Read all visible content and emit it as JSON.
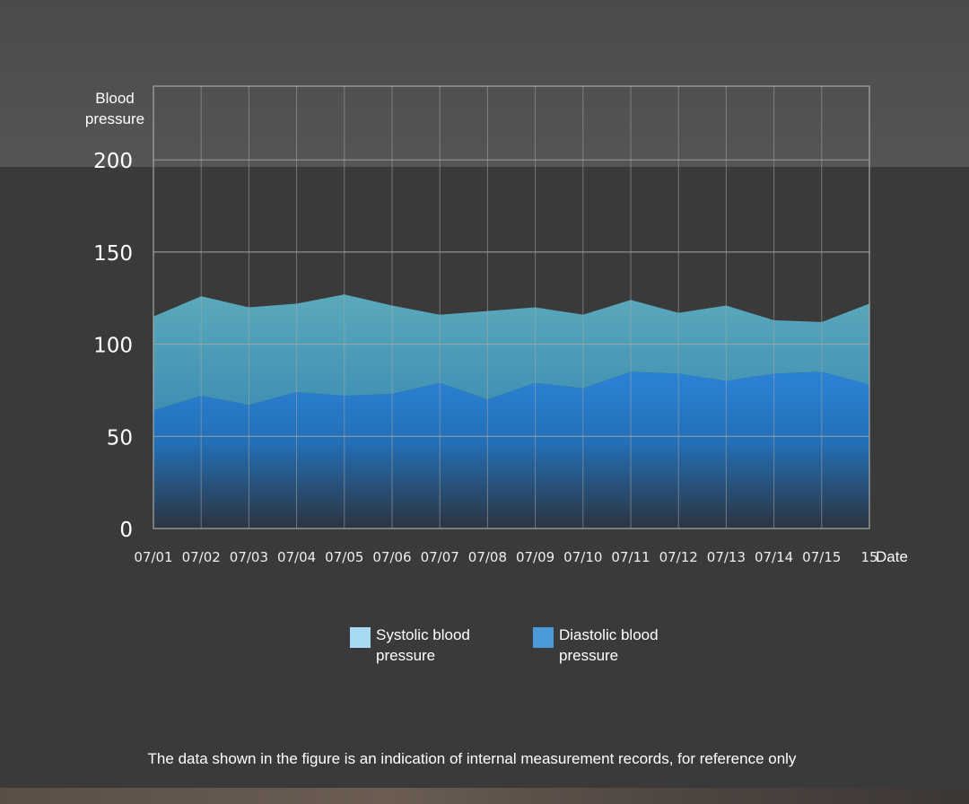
{
  "chart_data": {
    "type": "area",
    "ylabel": "Blood pressure",
    "xlabel": "Date",
    "ylim": [
      0,
      240
    ],
    "yticks": [
      0,
      50,
      100,
      150,
      200
    ],
    "categories": [
      "07/01",
      "07/02",
      "07/03",
      "07/04",
      "07/05",
      "07/06",
      "07/07",
      "07/08",
      "07/09",
      "07/10",
      "07/11",
      "07/12",
      "07/13",
      "07/14",
      "07/15",
      "15"
    ],
    "series": [
      {
        "name": "Systolic blood pressure",
        "values": [
          115,
          126,
          120,
          122,
          127,
          121,
          116,
          118,
          120,
          116,
          124,
          117,
          121,
          113,
          112,
          122
        ]
      },
      {
        "name": "Diastolic blood pressure",
        "values": [
          64,
          72,
          67,
          74,
          72,
          73,
          79,
          70,
          79,
          76,
          85,
          84,
          80,
          84,
          85,
          78
        ]
      }
    ],
    "legend_position": "bottom-center"
  },
  "colors": {
    "systolic": "#5fa3b6",
    "diastolic": "#2b7fcf",
    "systolic_swatch": "#a7dbf5",
    "diastolic_swatch": "#4a9ad8",
    "grid": "#a8a8a8"
  },
  "legend": {
    "systolic_label": "Systolic blood pressure",
    "diastolic_label": "Diastolic blood pressure"
  },
  "footnote": "The data shown in the figure is an indication of internal measurement records, for reference only"
}
